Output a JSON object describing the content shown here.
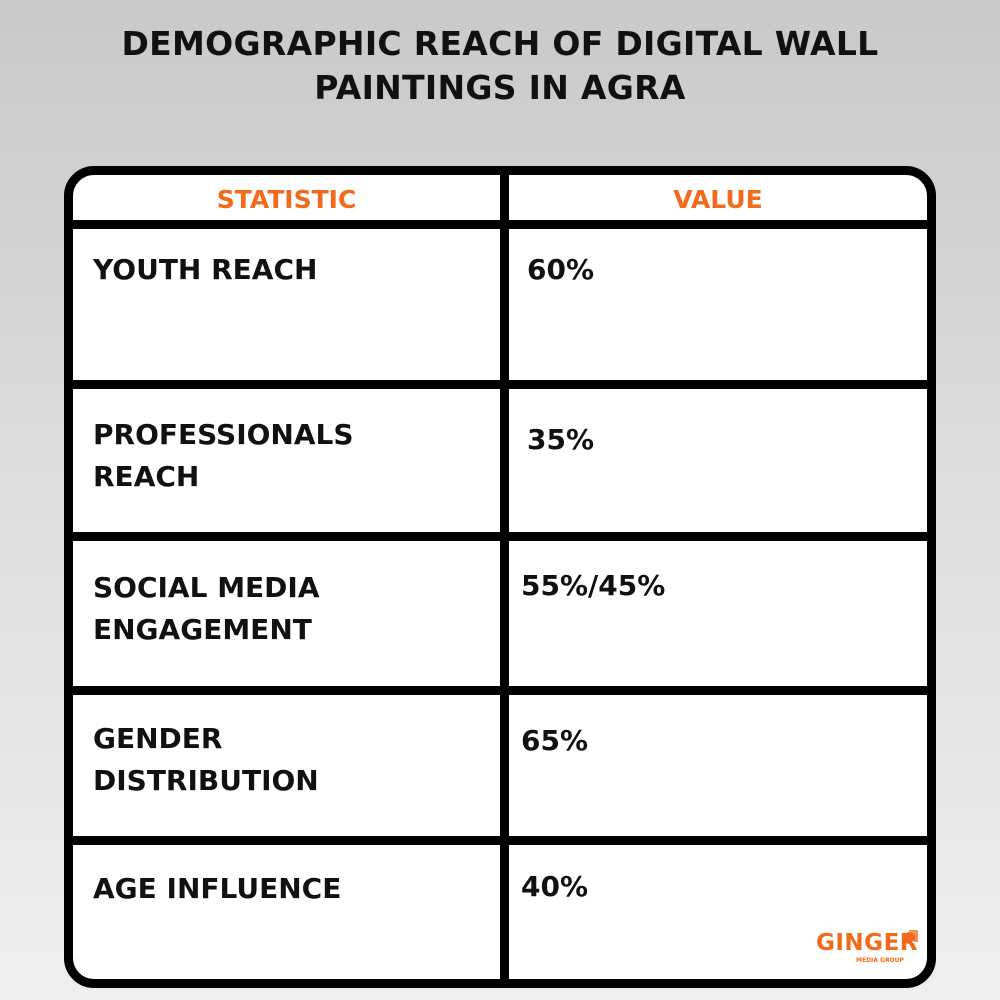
{
  "title_lines": [
    "DEMOGRAPHIC REACH OF DIGITAL WALL",
    "PAINTINGS IN AGRA"
  ],
  "table": {
    "headers": [
      "STATISTIC",
      "VALUE"
    ],
    "rows": [
      {
        "statistic": [
          "YOUTH REACH"
        ],
        "value": "60%"
      },
      {
        "statistic": [
          "PROFESSIONALS",
          "REACH"
        ],
        "value": "35%"
      },
      {
        "statistic": [
          "SOCIAL MEDIA",
          "ENGAGEMENT"
        ],
        "value": "55%/45%"
      },
      {
        "statistic": [
          "GENDER",
          "DISTRIBUTION"
        ],
        "value": "65%"
      },
      {
        "statistic": [
          "AGE INFLUENCE"
        ],
        "value": "40%"
      }
    ]
  },
  "logo": {
    "name": "GINGER",
    "tagline": "MEDIA GROUP"
  },
  "colors": {
    "accent": "#f26a1b",
    "border": "#000000",
    "text": "#111111"
  }
}
